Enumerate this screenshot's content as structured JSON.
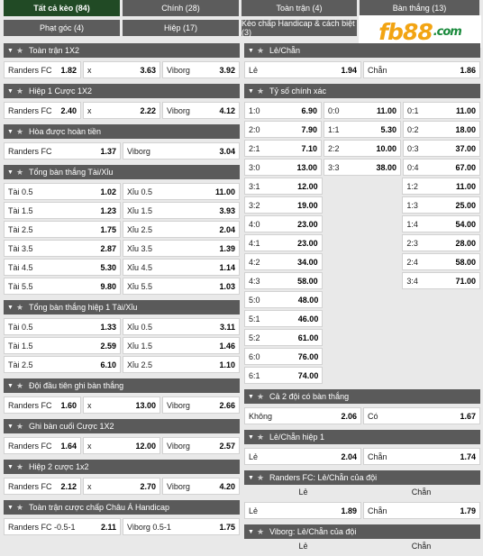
{
  "tabs": [
    {
      "label": "Tất cả kèo (84)",
      "active": true
    },
    {
      "label": "Chính (28)"
    },
    {
      "label": "Toàn trận (4)"
    },
    {
      "label": "Bàn thắng (13)"
    },
    {
      "label": "Phạt góc (4)"
    },
    {
      "label": "Hiệp (17)"
    },
    {
      "label": "Kèo chấp Handicap & cách biệt (3)"
    }
  ],
  "logo": {
    "fb": "fb",
    "n88": "88",
    "com": ".com"
  },
  "left": [
    {
      "title": "Toàn trận 1X2",
      "rows": [
        [
          [
            "Randers FC",
            "1.82"
          ],
          [
            "x",
            "3.63"
          ],
          [
            "Viborg",
            "3.92"
          ]
        ]
      ]
    },
    {
      "title": "Hiệp 1 Cược 1X2",
      "rows": [
        [
          [
            "Randers FC",
            "2.40"
          ],
          [
            "x",
            "2.22"
          ],
          [
            "Viborg",
            "4.12"
          ]
        ]
      ]
    },
    {
      "title": "Hòa được hoàn tiền",
      "rows": [
        [
          [
            "Randers FC",
            "1.37"
          ],
          [
            "Viborg",
            "3.04"
          ]
        ]
      ]
    },
    {
      "title": "Tổng bàn thắng Tài/Xỉu",
      "rows": [
        [
          [
            "Tài 0.5",
            "1.02"
          ],
          [
            "Xỉu 0.5",
            "11.00"
          ]
        ],
        [
          [
            "Tài 1.5",
            "1.23"
          ],
          [
            "Xỉu 1.5",
            "3.93"
          ]
        ],
        [
          [
            "Tài 2.5",
            "1.75"
          ],
          [
            "Xỉu 2.5",
            "2.04"
          ]
        ],
        [
          [
            "Tài 3.5",
            "2.87"
          ],
          [
            "Xỉu 3.5",
            "1.39"
          ]
        ],
        [
          [
            "Tài 4.5",
            "5.30"
          ],
          [
            "Xỉu 4.5",
            "1.14"
          ]
        ],
        [
          [
            "Tài 5.5",
            "9.80"
          ],
          [
            "Xỉu 5.5",
            "1.03"
          ]
        ]
      ]
    },
    {
      "title": "Tổng bàn thắng hiệp 1 Tài/Xỉu",
      "rows": [
        [
          [
            "Tài 0.5",
            "1.33"
          ],
          [
            "Xỉu 0.5",
            "3.11"
          ]
        ],
        [
          [
            "Tài 1.5",
            "2.59"
          ],
          [
            "Xỉu 1.5",
            "1.46"
          ]
        ],
        [
          [
            "Tài 2.5",
            "6.10"
          ],
          [
            "Xỉu 2.5",
            "1.10"
          ]
        ]
      ]
    },
    {
      "title": "Đội đầu tiên ghi bàn thắng",
      "rows": [
        [
          [
            "Randers FC",
            "1.60"
          ],
          [
            "x",
            "13.00"
          ],
          [
            "Viborg",
            "2.66"
          ]
        ]
      ]
    },
    {
      "title": "Ghi bàn cuối Cược 1X2",
      "rows": [
        [
          [
            "Randers FC",
            "1.64"
          ],
          [
            "x",
            "12.00"
          ],
          [
            "Viborg",
            "2.57"
          ]
        ]
      ]
    },
    {
      "title": "Hiệp 2 cược 1x2",
      "rows": [
        [
          [
            "Randers FC",
            "2.12"
          ],
          [
            "x",
            "2.70"
          ],
          [
            "Viborg",
            "4.20"
          ]
        ]
      ]
    },
    {
      "title": "Toàn trận cược chấp Châu Á Handicap",
      "rows": [
        [
          [
            "Randers FC -0.5-1",
            "2.11"
          ],
          [
            "Viborg 0.5-1",
            "1.75"
          ]
        ]
      ]
    }
  ],
  "right": [
    {
      "title": "Lẻ/Chẵn",
      "rows": [
        [
          [
            "Lẻ",
            "1.94"
          ],
          [
            "Chẵn",
            "1.86"
          ]
        ]
      ]
    },
    {
      "title": "Tỷ số chính xác",
      "rows": [
        [
          [
            "1:0",
            "6.90"
          ],
          [
            "0:0",
            "11.00"
          ],
          [
            "0:1",
            "11.00"
          ]
        ],
        [
          [
            "2:0",
            "7.90"
          ],
          [
            "1:1",
            "5.30"
          ],
          [
            "0:2",
            "18.00"
          ]
        ],
        [
          [
            "2:1",
            "7.10"
          ],
          [
            "2:2",
            "10.00"
          ],
          [
            "0:3",
            "37.00"
          ]
        ],
        [
          [
            "3:0",
            "13.00"
          ],
          [
            "3:3",
            "38.00"
          ],
          [
            "0:4",
            "67.00"
          ]
        ],
        [
          [
            "3:1",
            "12.00"
          ],
          null,
          [
            "1:2",
            "11.00"
          ]
        ],
        [
          [
            "3:2",
            "19.00"
          ],
          null,
          [
            "1:3",
            "25.00"
          ]
        ],
        [
          [
            "4:0",
            "23.00"
          ],
          null,
          [
            "1:4",
            "54.00"
          ]
        ],
        [
          [
            "4:1",
            "23.00"
          ],
          null,
          [
            "2:3",
            "28.00"
          ]
        ],
        [
          [
            "4:2",
            "34.00"
          ],
          null,
          [
            "2:4",
            "58.00"
          ]
        ],
        [
          [
            "4:3",
            "58.00"
          ],
          null,
          [
            "3:4",
            "71.00"
          ]
        ],
        [
          [
            "5:0",
            "48.00"
          ],
          null,
          null
        ],
        [
          [
            "5:1",
            "46.00"
          ],
          null,
          null
        ],
        [
          [
            "5:2",
            "61.00"
          ],
          null,
          null
        ],
        [
          [
            "6:0",
            "76.00"
          ],
          null,
          null
        ],
        [
          [
            "6:1",
            "74.00"
          ],
          null,
          null
        ]
      ]
    },
    {
      "title": "Cả 2 đội có bàn thắng",
      "rows": [
        [
          [
            "Không",
            "2.06"
          ],
          [
            "Có",
            "1.67"
          ]
        ]
      ]
    },
    {
      "title": "Lẻ/Chẵn hiệp 1",
      "rows": [
        [
          [
            "Lẻ",
            "2.04"
          ],
          [
            "Chẵn",
            "1.74"
          ]
        ]
      ]
    },
    {
      "title": "Randers FC: Lẻ/Chẵn của đội",
      "sub": [
        "Lẻ",
        "Chẵn"
      ],
      "rows": [
        [
          [
            "Lẻ",
            "1.89"
          ],
          [
            "Chẵn",
            "1.79"
          ]
        ]
      ]
    },
    {
      "title": "Viborg: Lẻ/Chẵn của đội",
      "sub": [
        "Lẻ",
        "Chẵn"
      ],
      "rows": []
    }
  ]
}
